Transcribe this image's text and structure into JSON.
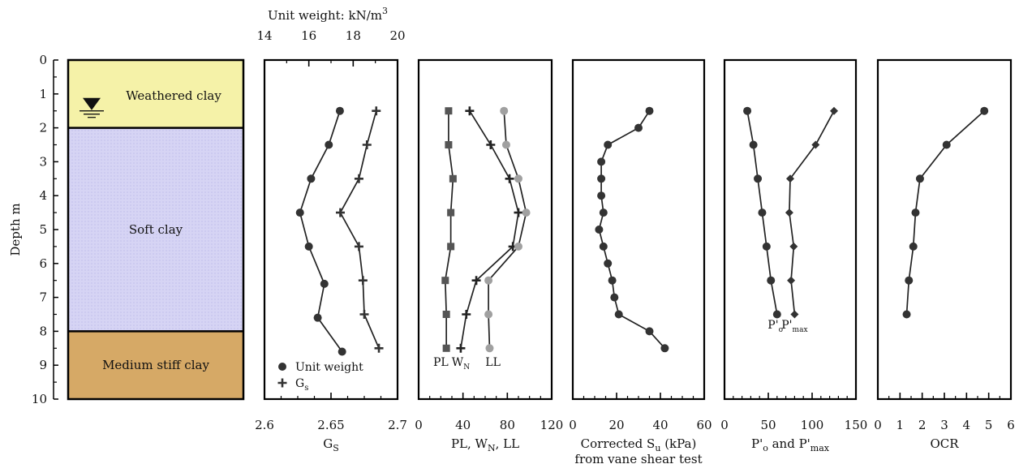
{
  "chart_data": {
    "depth_axis": {
      "label": "Depth m",
      "ticks": [
        "0",
        "1",
        "2",
        "3",
        "4",
        "5",
        "6",
        "7",
        "8",
        "9",
        "10"
      ],
      "range": [
        0,
        10
      ],
      "inverted": true
    },
    "soil_profile": {
      "type": "strata",
      "layers": [
        {
          "name": "Weathered clay",
          "top": 0,
          "bottom": 2,
          "color": "#f5f2a8"
        },
        {
          "name": "Soft clay",
          "top": 2,
          "bottom": 8,
          "color": "#d4d2f3"
        },
        {
          "name": "Medium stiff clay",
          "top": 8,
          "bottom": 10,
          "color": "#d6a966"
        }
      ],
      "water_table_depth": 1.5
    },
    "panels": [
      {
        "id": "gs",
        "type": "line",
        "xlabel": "G",
        "xlabel_sub": "S",
        "xlim": [
          2.6,
          2.7
        ],
        "xticks": [
          "2.6",
          "2.65",
          "2.7"
        ],
        "top_axis": {
          "label": "Unit weight: kN/m",
          "label_sup": "3",
          "xlim": [
            14,
            20
          ],
          "xticks": [
            "14",
            "16",
            "18",
            "20"
          ]
        },
        "legend": [
          {
            "name": "Unit weight",
            "marker": "circle"
          },
          {
            "name": "G",
            "name_sub": "s",
            "marker": "plus"
          }
        ],
        "series": [
          {
            "name": "Unit weight",
            "marker": "circle",
            "axis": "top",
            "x": [
              17.4,
              16.9,
              16.1,
              15.6,
              16.0,
              16.7,
              16.4,
              17.5
            ],
            "y": [
              1.5,
              2.5,
              3.5,
              4.5,
              5.5,
              6.6,
              7.6,
              8.6
            ]
          },
          {
            "name": "G",
            "marker": "plus",
            "axis": "bottom",
            "x": [
              2.684,
              2.677,
              2.671,
              2.657,
              2.671,
              2.674,
              2.675,
              2.686
            ],
            "y": [
              1.5,
              2.5,
              3.5,
              4.5,
              5.5,
              6.5,
              7.5,
              8.5
            ]
          }
        ]
      },
      {
        "id": "atterberg",
        "type": "line",
        "xlabel": "PL, W",
        "xlabel_sub": "N",
        "xlabel_tail": ", LL",
        "xlim": [
          0,
          120
        ],
        "xticks": [
          "0",
          "40",
          "80",
          "120"
        ],
        "annotations": [
          {
            "text": "PL",
            "x": 20,
            "y": 8.9
          },
          {
            "text": "W",
            "sub": "N",
            "x": 38,
            "y": 8.9
          },
          {
            "text": "LL",
            "x": 67,
            "y": 8.9
          }
        ],
        "series": [
          {
            "name": "PL",
            "marker": "square",
            "color": "#555555",
            "x": [
              27,
              27,
              31,
              29,
              29,
              24,
              25,
              25
            ],
            "y": [
              1.5,
              2.5,
              3.5,
              4.5,
              5.5,
              6.5,
              7.5,
              8.5
            ]
          },
          {
            "name": "W",
            "marker": "plus",
            "color": "#222222",
            "x": [
              46,
              65,
              82,
              90,
              85,
              52,
              43,
              38
            ],
            "y": [
              1.5,
              2.5,
              3.5,
              4.5,
              5.5,
              6.5,
              7.5,
              8.5
            ]
          },
          {
            "name": "LL",
            "marker": "circle",
            "color": "#a0a0a0",
            "x": [
              77,
              79,
              90,
              97,
              90,
              63,
              63,
              64
            ],
            "y": [
              1.5,
              2.5,
              3.5,
              4.5,
              5.5,
              6.5,
              7.5,
              8.5
            ]
          }
        ]
      },
      {
        "id": "su",
        "type": "line",
        "xlabel": "Corrected S",
        "xlabel_sub": "u",
        "xlabel_tail": " (kPa)",
        "xlabel_line2": "from vane shear test",
        "xlim": [
          0,
          60
        ],
        "xticks": [
          "0",
          "20",
          "40",
          "60"
        ],
        "series": [
          {
            "name": "Su",
            "marker": "circle",
            "x": [
              35,
              30,
              16,
              13,
              13,
              13,
              14,
              12,
              14,
              16,
              18,
              19,
              21,
              35,
              42
            ],
            "y": [
              1.5,
              2.0,
              2.5,
              3.0,
              3.5,
              4.0,
              4.5,
              5.0,
              5.5,
              6.0,
              6.5,
              7.0,
              7.5,
              8.0,
              8.5
            ]
          }
        ]
      },
      {
        "id": "preconsolidation",
        "type": "line",
        "xlabel": "P'",
        "xlabel_sub": "o",
        "xlabel_mid": " and P'",
        "xlabel_sub2": "max",
        "xlim": [
          0,
          150
        ],
        "xticks": [
          "0",
          "50",
          "100",
          "150"
        ],
        "annotations": [
          {
            "text": "P'",
            "sub": "o",
            "x": 58,
            "y": 7.8
          },
          {
            "text": "P'",
            "sub": "max",
            "x": 80,
            "y": 7.8
          }
        ],
        "series": [
          {
            "name": "P'o",
            "marker": "circle",
            "x": [
              26,
              33,
              38,
              43,
              48,
              53,
              60
            ],
            "y": [
              1.5,
              2.5,
              3.5,
              4.5,
              5.5,
              6.5,
              7.5
            ]
          },
          {
            "name": "P'max",
            "marker": "diamond",
            "x": [
              125,
              104,
              75,
              74,
              79,
              76,
              80
            ],
            "y": [
              1.5,
              2.5,
              3.5,
              4.5,
              5.5,
              6.5,
              7.5
            ]
          }
        ]
      },
      {
        "id": "ocr",
        "type": "line",
        "xlabel": "OCR",
        "xlim": [
          0,
          6
        ],
        "xticks": [
          "0",
          "1",
          "2",
          "3",
          "4",
          "5",
          "6"
        ],
        "series": [
          {
            "name": "OCR",
            "marker": "circle",
            "x": [
              4.8,
              3.1,
              1.9,
              1.7,
              1.6,
              1.4,
              1.3
            ],
            "y": [
              1.5,
              2.5,
              3.5,
              4.5,
              5.5,
              6.5,
              7.5
            ]
          }
        ]
      }
    ]
  }
}
